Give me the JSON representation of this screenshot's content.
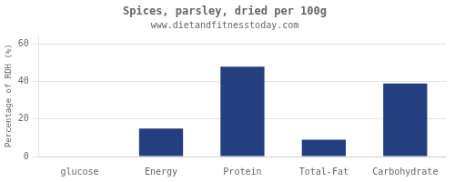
{
  "chart_data": {
    "type": "bar",
    "title": "Spices, parsley, dried per 100g",
    "subtitle": "www.dietandfitnesstoday.com",
    "categories": [
      "glucose",
      "Energy",
      "Protein",
      "Total-Fat",
      "Carbohydrate"
    ],
    "values": [
      0,
      15,
      48,
      9,
      39
    ],
    "color": "#243f7f",
    "ylim": [
      0,
      65
    ],
    "yticks": [
      0,
      20,
      40,
      60
    ],
    "ylabel": "Percentage of RDH (%)",
    "grid": true
  }
}
